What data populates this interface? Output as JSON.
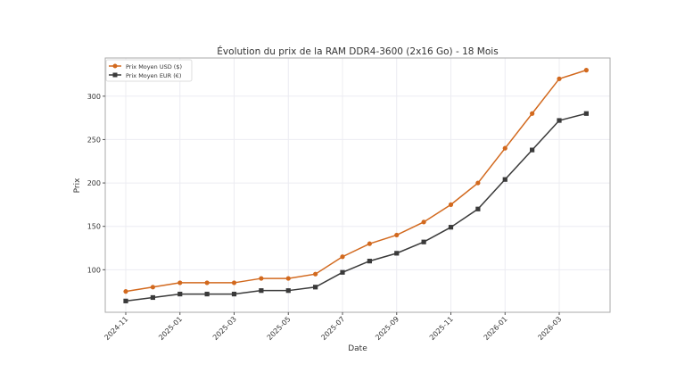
{
  "chart_data": {
    "type": "line",
    "title": "Évolution du prix de la RAM DDR4-3600 (2x16 Go) - 18 Mois",
    "xlabel": "Date",
    "ylabel": "Prix",
    "x": [
      "2024-11",
      "2024-12",
      "2025-01",
      "2025-02",
      "2025-03",
      "2025-04",
      "2025-05",
      "2025-06",
      "2025-07",
      "2025-08",
      "2025-09",
      "2025-10",
      "2025-11",
      "2025-12",
      "2026-01",
      "2026-02",
      "2026-03",
      "2026-04"
    ],
    "xticks": [
      "2024-11",
      "2025-01",
      "2025-03",
      "2025-05",
      "2025-07",
      "2025-09",
      "2025-11",
      "2026-01",
      "2026-03"
    ],
    "yticks": [
      100,
      150,
      200,
      250,
      300
    ],
    "ylim": [
      51,
      344
    ],
    "grid": true,
    "legend": "top-left",
    "series": [
      {
        "name": "Prix Moyen USD ($)",
        "color": "#d2691e",
        "marker": "circle",
        "values": [
          75,
          80,
          85,
          85,
          85,
          90,
          90,
          95,
          115,
          130,
          140,
          155,
          175,
          200,
          240,
          280,
          320,
          330
        ]
      },
      {
        "name": "Prix Moyen EUR (€)",
        "color": "#3a3a3a",
        "marker": "square",
        "values": [
          64,
          68,
          72,
          72,
          72,
          76,
          76,
          80,
          97,
          110,
          119,
          132,
          149,
          170,
          204,
          238,
          272,
          280
        ]
      }
    ]
  }
}
